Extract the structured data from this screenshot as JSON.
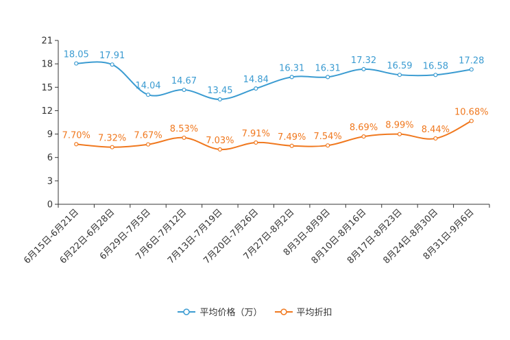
{
  "chart_data": {
    "type": "line",
    "categories": [
      "6月15日-6月21日",
      "6月22日-6月28日",
      "6月29日-7月5日",
      "7月6日-7月12日",
      "7月13日-7月19日",
      "7月20日-7月26日",
      "7月27日-8月2日",
      "8月3日-8月9日",
      "8月10日-8月16日",
      "8月17日-8月23日",
      "8月24日-8月30日",
      "8月31日-9月6日"
    ],
    "ylim": [
      0,
      21
    ],
    "yticks": [
      0,
      3,
      6,
      9,
      12,
      15,
      18,
      21
    ],
    "series": [
      {
        "name": "平均价格（万）",
        "color": "#3a9bd1",
        "values": [
          18.05,
          17.91,
          14.04,
          14.67,
          13.45,
          14.84,
          16.31,
          16.31,
          17.32,
          16.59,
          16.58,
          17.28
        ],
        "labels": [
          "18.05",
          "17.91",
          "14.04",
          "14.67",
          "13.45",
          "14.84",
          "16.31",
          "16.31",
          "17.32",
          "16.59",
          "16.58",
          "17.28"
        ]
      },
      {
        "name": "平均折扣",
        "color": "#f0781e",
        "values": [
          7.7,
          7.32,
          7.67,
          8.53,
          7.03,
          7.91,
          7.49,
          7.54,
          8.69,
          8.99,
          8.44,
          10.68
        ],
        "labels": [
          "7.70%",
          "7.32%",
          "7.67%",
          "8.53%",
          "7.03%",
          "7.91%",
          "7.49%",
          "7.54%",
          "8.69%",
          "8.99%",
          "8.44%",
          "10.68%"
        ]
      }
    ],
    "legend_position": "bottom-center",
    "grid": false
  }
}
